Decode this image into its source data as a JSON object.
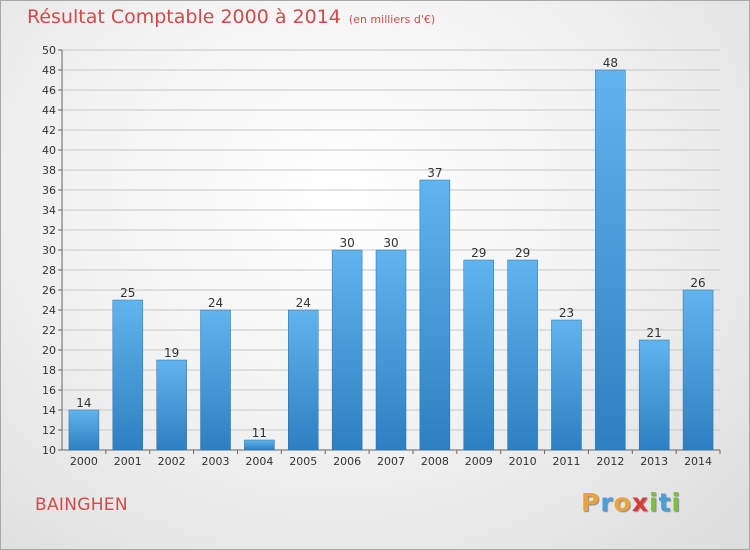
{
  "title": "Résultat Comptable 2000 à 2014",
  "unit_note": "(en milliers d'€)",
  "commune": "BAINGHEN",
  "logo": {
    "letters": [
      "P",
      "r",
      "o",
      "x",
      "i",
      "t",
      "i"
    ],
    "colors": [
      "#e8a43a",
      "#4a9fd8",
      "#e8a43a",
      "#d93a3a",
      "#7ac043",
      "#4a9fd8",
      "#7ac043"
    ]
  },
  "colors": {
    "title": "#d04a4a",
    "bar_top": "#62b4ee",
    "bar_bottom": "#2d7fc0",
    "grid": "#c8c8c8"
  },
  "chart_data": {
    "type": "bar",
    "title": "Résultat Comptable 2000 à 2014",
    "xlabel": "",
    "ylabel": "",
    "ylim": [
      10,
      50
    ],
    "ytick_step": 2,
    "grid": true,
    "categories": [
      "2000",
      "2001",
      "2002",
      "2003",
      "2004",
      "2005",
      "2006",
      "2007",
      "2008",
      "2009",
      "2010",
      "2011",
      "2012",
      "2013",
      "2014"
    ],
    "values": [
      14,
      25,
      19,
      24,
      11,
      24,
      30,
      30,
      37,
      29,
      29,
      23,
      48,
      21,
      26
    ]
  }
}
